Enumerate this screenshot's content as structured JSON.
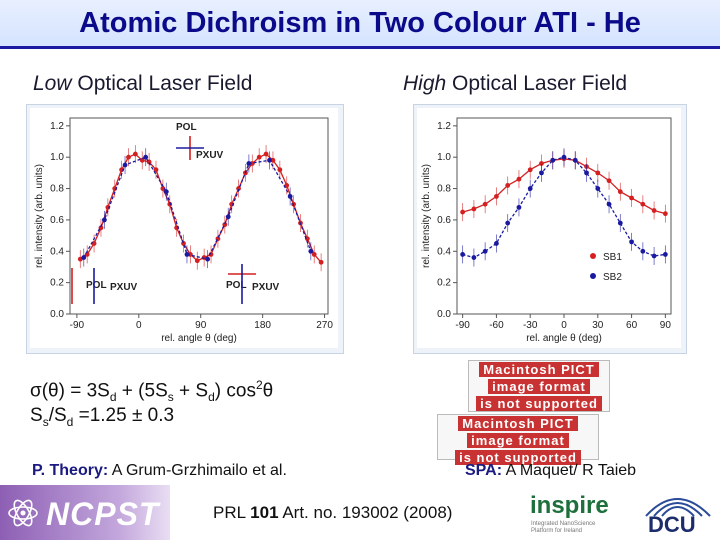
{
  "title": "Atomic Dichroism in Two Colour ATI - He",
  "left_panel": {
    "subtitle_em": "Low",
    "subtitle_rest": " Optical Laser Field"
  },
  "right_panel": {
    "subtitle_em": "High",
    "subtitle_rest": " Optical Laser Field"
  },
  "equation": {
    "line1_a": "σ(θ) = 3S",
    "line1_sub1": "d",
    "line1_b": " + (5S",
    "line1_sub2": "s",
    "line1_c": " + S",
    "line1_sub3": "d",
    "line1_d": ") cos",
    "line1_sup": "2",
    "line1_e": "θ",
    "line2_a": "S",
    "line2_sub1": "s",
    "line2_b": "/S",
    "line2_sub2": "d",
    "line2_c": " =1.25 ± 0.3"
  },
  "credits": {
    "theory_label": "P. Theory:",
    "theory_text": " A Grum-Grzhimailo et al.",
    "spa_label": "SPA:",
    "spa_text": " A Maquet/ R Taieb"
  },
  "pict_placeholder": {
    "line1": "Macintosh PICT",
    "line2": "image format",
    "line3": "is not supported"
  },
  "footer": {
    "ncpst": "NCPST",
    "ref_a": "PRL ",
    "ref_b": "101",
    "ref_c": " Art. no. 193002 (2008)",
    "inspire": "inspire",
    "inspire_sub": "Integrated NanoScience Platform for Ireland",
    "dcu": "DCU"
  },
  "colors": {
    "title": "#0a0a8a",
    "sb1": "#d42020",
    "sb2": "#1a1aa0"
  },
  "chart_data": [
    {
      "type": "scatter",
      "xlabel": "rel. angle θ (deg)",
      "ylabel": "rel. intensity (arb. units)",
      "xlim": [
        -100,
        275
      ],
      "ylim": [
        0,
        1.25
      ],
      "x_ticks": [
        "-90",
        "0",
        "90",
        "180",
        "270"
      ],
      "y_ticks": [
        "0.0",
        "0.2",
        "0.4",
        "0.6",
        "0.8",
        "1.0",
        "1.2"
      ],
      "annotations": [
        "POL",
        "PXUV",
        "POL",
        "PXUV",
        "POL",
        "PXUV"
      ],
      "series": [
        {
          "color": "#d42020",
          "x": [
            -85,
            -75,
            -65,
            -55,
            -45,
            -35,
            -25,
            -15,
            -5,
            5,
            15,
            25,
            35,
            45,
            55,
            65,
            75,
            85,
            95,
            105,
            115,
            125,
            135,
            145,
            155,
            165,
            175,
            185,
            195,
            205,
            215,
            225,
            235,
            245,
            255,
            265
          ],
          "y": [
            0.35,
            0.38,
            0.45,
            0.55,
            0.68,
            0.8,
            0.92,
            1.0,
            1.02,
            0.98,
            0.97,
            0.92,
            0.8,
            0.7,
            0.55,
            0.45,
            0.38,
            0.34,
            0.36,
            0.38,
            0.48,
            0.57,
            0.7,
            0.8,
            0.9,
            0.96,
            1.0,
            1.02,
            0.98,
            0.92,
            0.82,
            0.7,
            0.58,
            0.48,
            0.38,
            0.33
          ]
        },
        {
          "color": "#1a1aa0",
          "x": [
            -80,
            -50,
            -20,
            10,
            40,
            70,
            100,
            130,
            160,
            190,
            220,
            250
          ],
          "y": [
            0.36,
            0.6,
            0.95,
            1.0,
            0.78,
            0.38,
            0.35,
            0.62,
            0.96,
            0.98,
            0.75,
            0.4
          ]
        }
      ]
    },
    {
      "type": "scatter",
      "xlabel": "rel. angle θ (deg)",
      "ylabel": "rel. intensity (arb. units)",
      "xlim": [
        -95,
        95
      ],
      "ylim": [
        0,
        1.25
      ],
      "x_ticks": [
        "-90",
        "-60",
        "-30",
        "0",
        "30",
        "60",
        "90"
      ],
      "y_ticks": [
        "0.0",
        "0.2",
        "0.4",
        "0.6",
        "0.8",
        "1.0",
        "1.2"
      ],
      "legend": "bottom-right",
      "series": [
        {
          "name": "SB1",
          "color": "#d42020",
          "x": [
            -90,
            -80,
            -70,
            -60,
            -50,
            -40,
            -30,
            -20,
            -10,
            0,
            10,
            20,
            30,
            40,
            50,
            60,
            70,
            80,
            90
          ],
          "y": [
            0.65,
            0.67,
            0.7,
            0.75,
            0.82,
            0.86,
            0.92,
            0.96,
            0.98,
            0.99,
            0.98,
            0.94,
            0.9,
            0.85,
            0.78,
            0.74,
            0.7,
            0.66,
            0.64
          ]
        },
        {
          "name": "SB2",
          "color": "#1a1aa0",
          "x": [
            -90,
            -80,
            -70,
            -60,
            -50,
            -40,
            -30,
            -20,
            -10,
            0,
            10,
            20,
            30,
            40,
            50,
            60,
            70,
            80,
            90
          ],
          "y": [
            0.38,
            0.36,
            0.4,
            0.45,
            0.58,
            0.68,
            0.8,
            0.9,
            0.98,
            1.0,
            0.98,
            0.9,
            0.8,
            0.7,
            0.58,
            0.46,
            0.4,
            0.37,
            0.38
          ]
        }
      ]
    }
  ]
}
